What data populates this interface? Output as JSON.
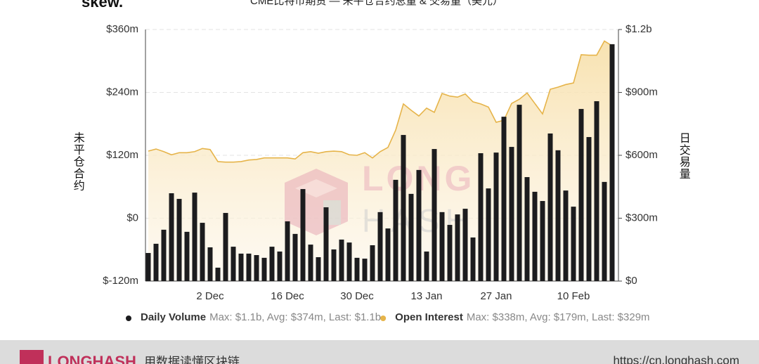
{
  "logo": "skew.",
  "watermark": {
    "top": "LONG",
    "bottom": "HASH"
  },
  "chart_data": {
    "type": "combo",
    "title": "CME比特币期货 — 未平仓合约总量 & 交易量（美元）",
    "y_label": "未平仓合约",
    "y2_label": "日交易量",
    "categories": [
      null,
      null,
      null,
      null,
      null,
      null,
      null,
      null,
      "2 Dec",
      null,
      null,
      null,
      null,
      null,
      null,
      null,
      null,
      null,
      "16 Dec",
      null,
      null,
      null,
      null,
      null,
      null,
      null,
      null,
      "30 Dec",
      null,
      null,
      null,
      null,
      null,
      null,
      null,
      null,
      "13 Jan",
      null,
      null,
      null,
      null,
      null,
      null,
      null,
      null,
      "27 Jan",
      null,
      null,
      null,
      null,
      null,
      null,
      null,
      null,
      null,
      "10 Feb",
      null,
      null,
      null,
      null,
      null
    ],
    "series": [
      {
        "name": "Daily Volume",
        "kind": "bar",
        "axis": "y2",
        "color": "#1c1c1e",
        "stats": "Max: $1.1b, Avg: $374m, Last: $1.1b",
        "values": [
          134,
          178,
          245,
          419,
          392,
          235,
          422,
          278,
          161,
          64,
          325,
          164,
          131,
          131,
          124,
          111,
          164,
          141,
          285,
          225,
          439,
          174,
          114,
          352,
          151,
          198,
          184,
          111,
          107,
          171,
          329,
          251,
          483,
          697,
          416,
          530,
          141,
          630,
          329,
          268,
          318,
          345,
          208,
          610,
          442,
          613,
          784,
          640,
          841,
          496,
          426,
          382,
          704,
          624,
          432,
          355,
          821,
          687,
          858,
          473,
          1130
        ]
      },
      {
        "name": "Open Interest",
        "kind": "line",
        "color": "#e6b44a",
        "stats": "Max: $338m, Avg: $179m, Last: $329m",
        "values": [
          128,
          132,
          127,
          121,
          125,
          125,
          127,
          133,
          131,
          108,
          107,
          107,
          108,
          111,
          112,
          115,
          115,
          115,
          115,
          113,
          125,
          127,
          124,
          127,
          128,
          127,
          121,
          120,
          125,
          115,
          127,
          135,
          168,
          218,
          206,
          195,
          210,
          202,
          238,
          233,
          231,
          237,
          222,
          218,
          212,
          183,
          187,
          219,
          227,
          239,
          219,
          199,
          246,
          250,
          255,
          258,
          312,
          311,
          311,
          338,
          329
        ]
      }
    ],
    "ylim": [
      -120,
      360
    ],
    "yticks": [
      {
        "value": -120,
        "label": "$-120m"
      },
      {
        "value": 0,
        "label": "$0"
      },
      {
        "value": 120,
        "label": "$120m"
      },
      {
        "value": 240,
        "label": "$240m"
      },
      {
        "value": 360,
        "label": "$360m"
      }
    ],
    "y2lim": [
      0,
      1200
    ],
    "y2ticks": [
      {
        "value": 0,
        "label": "$0"
      },
      {
        "value": 300,
        "label": "$300m"
      },
      {
        "value": 600,
        "label": "$600m"
      },
      {
        "value": 900,
        "label": "$900m"
      },
      {
        "value": 1200,
        "label": "$1.2b"
      }
    ],
    "grid": true
  },
  "footer": {
    "brand": "LONGHASH",
    "slogan": "用数据读懂区块链",
    "url": "https://cn.longhash.com"
  }
}
